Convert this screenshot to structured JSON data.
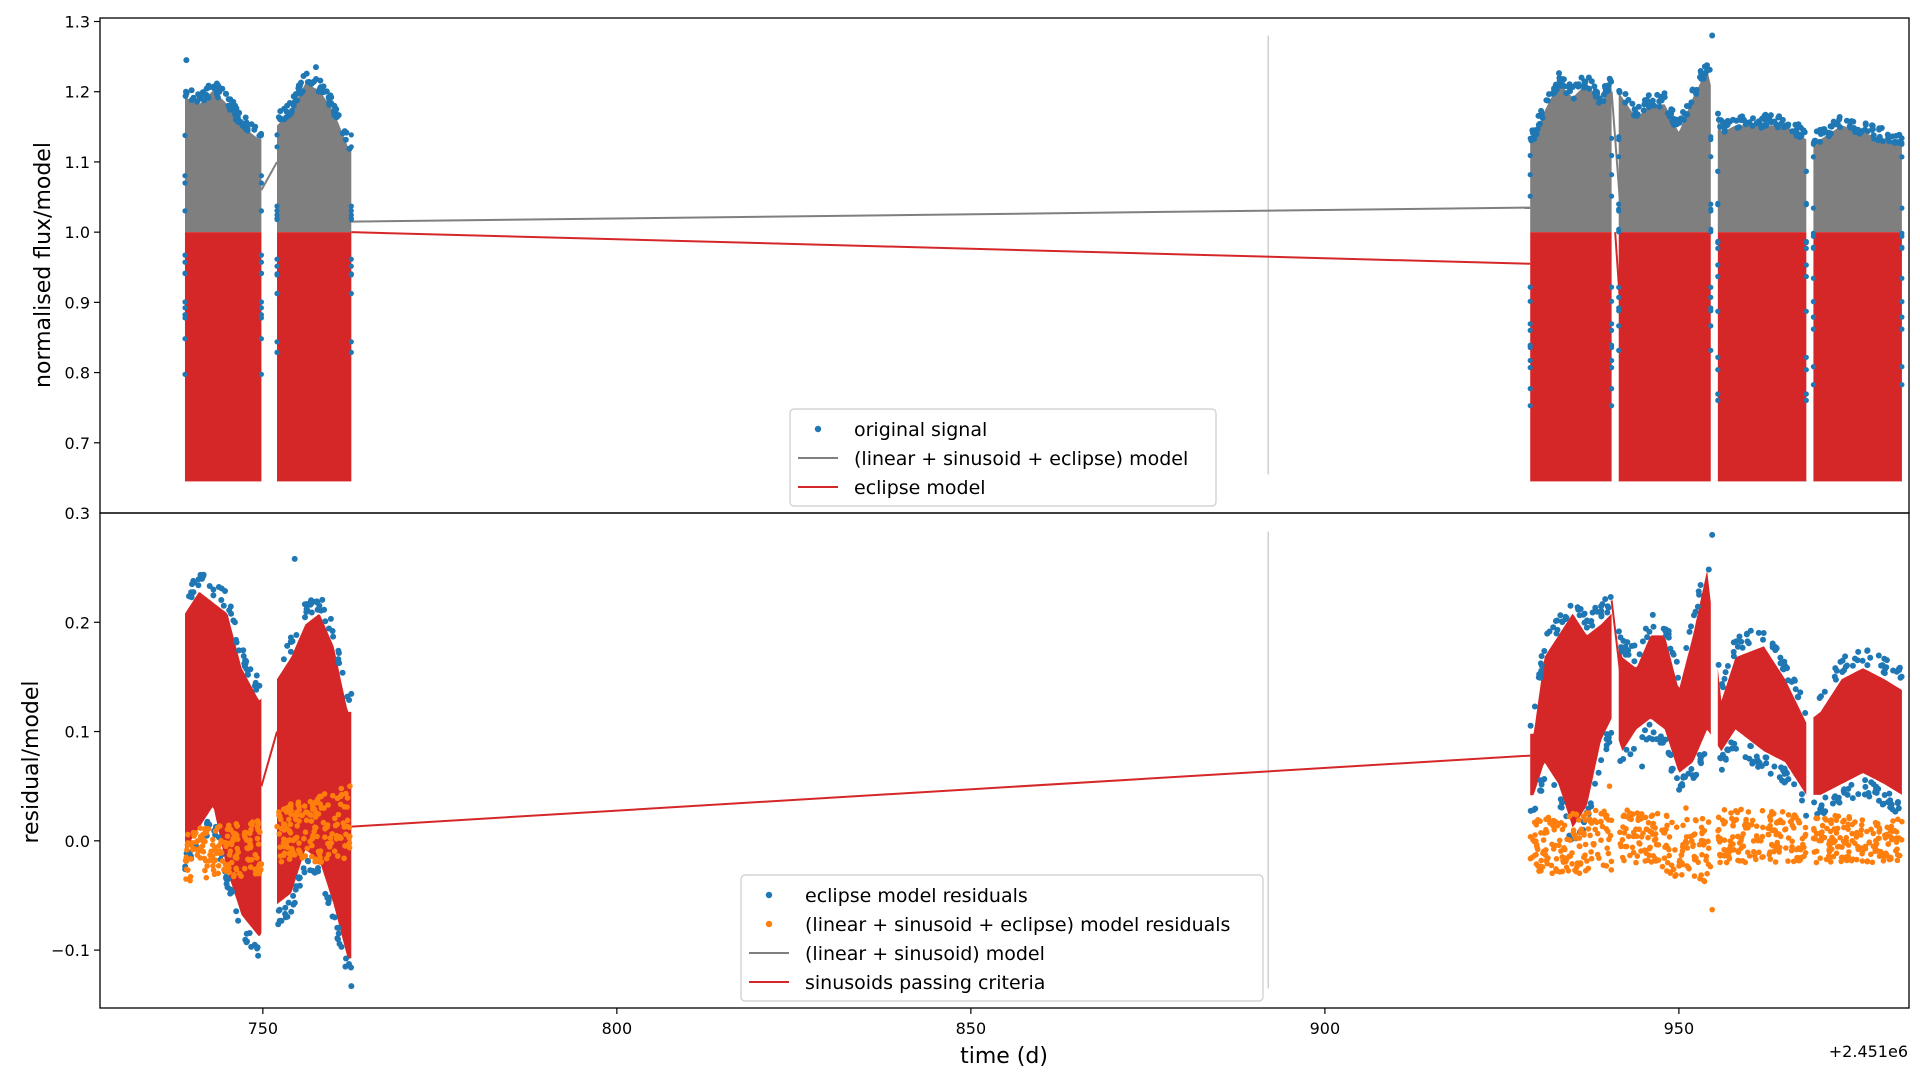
{
  "colors": {
    "blue": "#1f77b4",
    "orange": "#ff7f0e",
    "gray": "#7f7f7f",
    "red": "#d62728"
  },
  "x_offset_label": "+2.451e6",
  "chart_data": [
    {
      "type": "scatter",
      "panel": "top",
      "ylabel": "normalised flux/model",
      "xlabel": "",
      "xlim": [
        727,
        982.5
      ],
      "ylim": [
        0.6,
        1.305
      ],
      "yticks": [
        0.7,
        0.8,
        0.9,
        1.0,
        1.1,
        1.2,
        1.3
      ],
      "ytick_labels": [
        "0.7",
        "0.8",
        "0.9",
        "1.0",
        "1.1",
        "1.2",
        "1.3"
      ],
      "bottom_label": "0.3",
      "legend_position": "lower-center",
      "segments": [
        [
          739,
          749.8
        ],
        [
          752,
          762.5
        ],
        [
          929,
          940.5
        ],
        [
          941.5,
          954.5
        ],
        [
          955.5,
          968
        ],
        [
          969,
          981.5
        ]
      ],
      "series": [
        {
          "name": "original signal",
          "kind": "scatter",
          "color": "blue",
          "upper_envelope": [
            [
              739,
              1.2
            ],
            [
              741,
              1.19
            ],
            [
              743,
              1.21
            ],
            [
              745,
              1.19
            ],
            [
              747,
              1.16
            ],
            [
              749.5,
              1.14
            ],
            [
              752,
              1.16
            ],
            [
              754,
              1.18
            ],
            [
              756,
              1.22
            ],
            [
              758,
              1.21
            ],
            [
              760,
              1.18
            ],
            [
              762,
              1.13
            ],
            [
              929.5,
              1.14
            ],
            [
              931,
              1.18
            ],
            [
              933,
              1.22
            ],
            [
              935,
              1.2
            ],
            [
              937,
              1.22
            ],
            [
              939,
              1.19
            ],
            [
              940.5,
              1.22
            ],
            [
              942,
              1.2
            ],
            [
              944,
              1.17
            ],
            [
              946,
              1.19
            ],
            [
              948,
              1.19
            ],
            [
              950,
              1.15
            ],
            [
              952,
              1.2
            ],
            [
              954,
              1.24
            ],
            [
              956,
              1.15
            ],
            [
              958,
              1.16
            ],
            [
              962,
              1.16
            ],
            [
              965,
              1.16
            ],
            [
              968,
              1.14
            ],
            [
              970,
              1.14
            ],
            [
              973,
              1.16
            ],
            [
              976,
              1.15
            ],
            [
              979,
              1.14
            ],
            [
              981.5,
              1.13
            ]
          ]
        },
        {
          "name": "(linear + sinusoid + eclipse) model",
          "kind": "line",
          "color": "gray",
          "trend": [
            [
              762.5,
              1.015
            ],
            [
              929,
              1.035
            ]
          ]
        },
        {
          "name": "eclipse model",
          "kind": "line",
          "color": "red",
          "trend": [
            [
              762.5,
              1.0
            ],
            [
              929,
              0.955
            ]
          ],
          "lower_bound": 0.645
        }
      ]
    },
    {
      "type": "scatter",
      "panel": "bottom",
      "ylabel": "residual/model",
      "xlabel": "time (d)",
      "xlim": [
        727,
        982.5
      ],
      "ylim": [
        -0.153,
        0.3
      ],
      "xticks": [
        750,
        800,
        850,
        900,
        950
      ],
      "xtick_labels": [
        "750",
        "800",
        "850",
        "900",
        "950"
      ],
      "yticks": [
        -0.1,
        0.0,
        0.1,
        0.2
      ],
      "ytick_labels": [
        "−0.1",
        "0.0",
        "0.1",
        "0.2"
      ],
      "legend_position": "lower-center",
      "series": [
        {
          "name": "eclipse model residuals",
          "kind": "scatter",
          "color": "blue",
          "band": [
            [
              739,
              -0.02,
              0.22
            ],
            [
              741,
              0.0,
              0.24
            ],
            [
              743,
              0.02,
              0.23
            ],
            [
              745,
              -0.04,
              0.22
            ],
            [
              747,
              -0.08,
              0.17
            ],
            [
              749.5,
              -0.1,
              0.14
            ],
            [
              752,
              -0.07,
              0.16
            ],
            [
              754,
              -0.06,
              0.18
            ],
            [
              756,
              -0.02,
              0.21
            ],
            [
              758,
              -0.03,
              0.22
            ],
            [
              760,
              -0.07,
              0.19
            ],
            [
              762,
              -0.12,
              0.13
            ],
            [
              929.5,
              0.03,
              0.11
            ],
            [
              931,
              0.06,
              0.18
            ],
            [
              933,
              0.04,
              0.2
            ],
            [
              935,
              0.0,
              0.22
            ],
            [
              937,
              0.02,
              0.2
            ],
            [
              939,
              0.08,
              0.21
            ],
            [
              940.5,
              0.1,
              0.22
            ],
            [
              942,
              0.07,
              0.18
            ],
            [
              944,
              0.09,
              0.17
            ],
            [
              946,
              0.1,
              0.2
            ],
            [
              948,
              0.09,
              0.2
            ],
            [
              950,
              0.05,
              0.15
            ],
            [
              952,
              0.06,
              0.2
            ],
            [
              954,
              0.09,
              0.26
            ],
            [
              956,
              0.07,
              0.14
            ],
            [
              958,
              0.09,
              0.18
            ],
            [
              962,
              0.07,
              0.19
            ],
            [
              965,
              0.06,
              0.16
            ],
            [
              968,
              0.03,
              0.12
            ],
            [
              970,
              0.03,
              0.13
            ],
            [
              973,
              0.04,
              0.16
            ],
            [
              976,
              0.05,
              0.17
            ],
            [
              979,
              0.04,
              0.16
            ],
            [
              981.5,
              0.03,
              0.15
            ]
          ]
        },
        {
          "name": "(linear + sinusoid + eclipse) model residuals",
          "kind": "scatter",
          "color": "orange",
          "band": [
            [
              739,
              -0.04,
              0.01
            ],
            [
              749.5,
              -0.03,
              0.02
            ],
            [
              752,
              -0.02,
              0.03
            ],
            [
              762,
              -0.02,
              0.05
            ],
            [
              929.5,
              -0.03,
              0.02
            ],
            [
              940.5,
              -0.03,
              0.03
            ],
            [
              942,
              -0.02,
              0.03
            ],
            [
              954,
              -0.04,
              0.02
            ],
            [
              956,
              -0.02,
              0.03
            ],
            [
              981.5,
              -0.02,
              0.02
            ]
          ]
        },
        {
          "name": "(linear + sinusoid) model",
          "kind": "line",
          "color": "gray"
        },
        {
          "name": "sinusoids passing criteria",
          "kind": "line",
          "color": "red",
          "trend": [
            [
              762.5,
              0.013
            ],
            [
              929,
              0.078
            ]
          ]
        }
      ]
    }
  ]
}
